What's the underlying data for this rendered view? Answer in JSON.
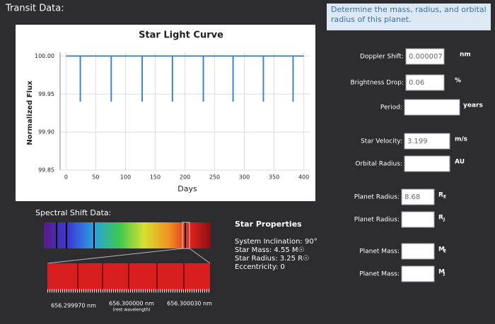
{
  "header": {
    "title": "Transit Data:"
  },
  "instruction": "Determine the mass, radius, and orbital radius of this planet.",
  "light_curve": {
    "type": "line",
    "title": "Star Light Curve",
    "x_label": "Days",
    "y_label": "Normalized Flux",
    "x": [
      0,
      24,
      24,
      24,
      76,
      76,
      76,
      128,
      128,
      128,
      179,
      179,
      179,
      231,
      231,
      231,
      281,
      281,
      281,
      332,
      332,
      332,
      382,
      382,
      382,
      400
    ],
    "values": [
      100,
      100,
      99.94,
      100,
      100,
      99.94,
      100,
      100,
      99.94,
      100,
      100,
      99.94,
      100,
      100,
      99.94,
      100,
      100,
      99.94,
      100,
      100,
      99.94,
      100,
      100,
      99.94,
      100,
      100
    ],
    "color": "#3f86c8",
    "xlim": [
      -10,
      410
    ],
    "ylim": [
      99.85,
      100.005
    ],
    "xticks": [
      0,
      50,
      100,
      150,
      200,
      250,
      300,
      350,
      400
    ],
    "yticks": [
      {
        "value": 100,
        "label": "100.00"
      },
      99.95,
      {
        "value": 99.9,
        "label": "99.90"
      },
      {
        "value": 99.85,
        "label": "99.85"
      }
    ],
    "grid": true
  },
  "spectral": {
    "title": "Spectral Shift Data:",
    "left": "656.299970 nm",
    "center": "656.300000 nm",
    "center_note": "(rest wavelength)",
    "right": "656.300030 nm"
  },
  "star_properties": {
    "title": "Star Properties",
    "lines": [
      "System Inclination: 90°",
      "Star Mass: 4.55 M☉",
      "Star Radius: 3.25 R☉",
      "Eccentricity: 0"
    ]
  },
  "fields": [
    {
      "label": "Doppler Shift:",
      "value": "0.000007",
      "unit": "nm"
    },
    {
      "label": "Brightness Drop:",
      "value": "0.06",
      "unit": "%"
    },
    {
      "label": "Period:",
      "unit": "years"
    },
    {
      "label": "Star Velocity:",
      "value": "3.199",
      "unit": "m/s"
    },
    {
      "label": "Orbital Radius:",
      "unit": "AU"
    },
    {
      "label": "Planet Radius:",
      "value": "8.68",
      "unit": "R",
      "unit_sub": "E"
    },
    {
      "label": "Planet Radius:",
      "unit": "R",
      "unit_sub": "J"
    },
    {
      "label": "Planet Mass:",
      "unit": "M",
      "unit_sub": "E"
    },
    {
      "label": "Planet Mass:",
      "unit": "M",
      "unit_sub": "J"
    }
  ]
}
